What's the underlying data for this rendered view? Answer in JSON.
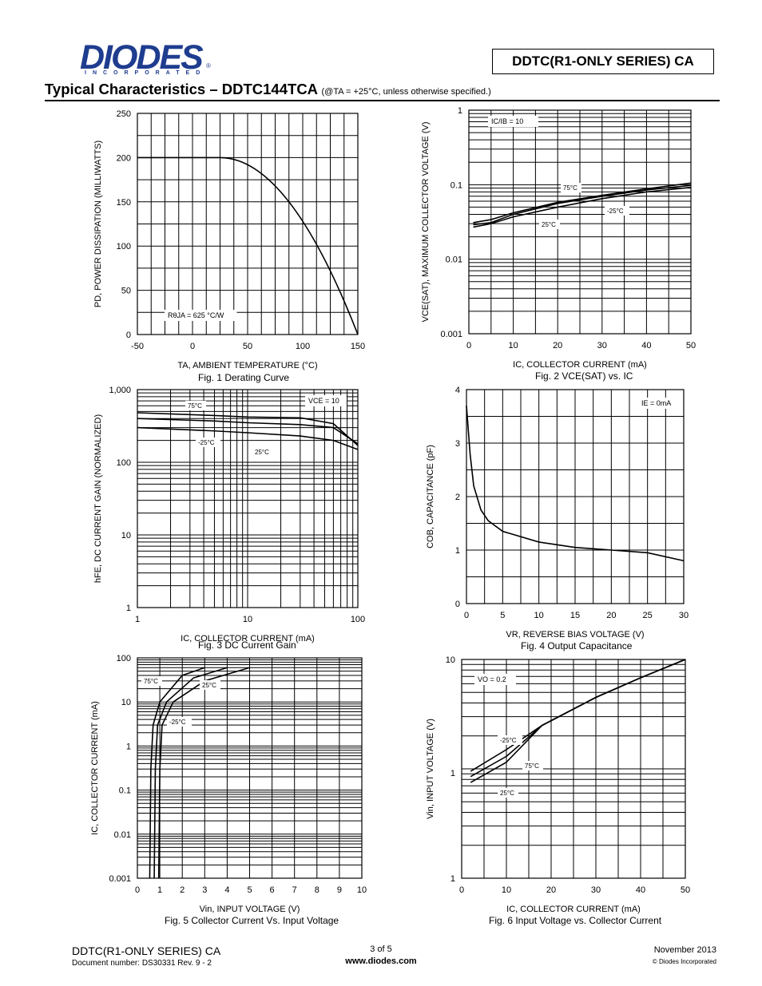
{
  "header": {
    "logo_text": "DIODES",
    "logo_subtext": "INCORPORATED",
    "logo_reg": "®",
    "part_series": "DDTC(R1-ONLY SERIES) CA"
  },
  "section": {
    "title": "Typical Characteristics – DDTC144TCA",
    "condition": "(@TA = +25°C, unless otherwise specified.)"
  },
  "figures": {
    "fig1": {
      "caption": "Fig. 1 Derating Curve",
      "ylabel": "PD, POWER DISSIPATION (MILLIWATTS)",
      "xlabel": "TA, AMBIENT TEMPERATURE (°C)",
      "note": "RθJA = 625 °C/W",
      "yticks": [
        "0",
        "50",
        "100",
        "150",
        "200",
        "250"
      ],
      "xticks": [
        "-50",
        "0",
        "50",
        "100",
        "150"
      ]
    },
    "fig2": {
      "caption": "Fig. 2 VCE(SAT) vs. IC",
      "ylabel": "VCE(SAT), MAXIMUM COLLECTOR VOLTAGE (V)",
      "xlabel": "IC, COLLECTOR CURRENT (mA)",
      "note": "IC/IB = 10",
      "series_labels": [
        "75°C",
        "-25°C",
        "25°C"
      ],
      "yticks": [
        "0.001",
        "0.01",
        "0.1",
        "1"
      ],
      "xticks": [
        "0",
        "10",
        "20",
        "30",
        "40",
        "50"
      ]
    },
    "fig3": {
      "caption": "Fig. 3 DC Current Gain",
      "ylabel": "hFE, DC CURRENT GAIN (NORMALIZED)",
      "xlabel": "IC, COLLECTOR CURRENT (mA)",
      "note": "VCE = 10",
      "series_labels": [
        "75°C",
        "-25°C",
        "25°C"
      ],
      "yticks": [
        "1",
        "10",
        "100",
        "1,000"
      ],
      "xticks": [
        "1",
        "10",
        "100"
      ]
    },
    "fig4": {
      "caption": "Fig. 4 Output Capacitance",
      "ylabel": "COB, CAPACITANCE (pF)",
      "xlabel": "VR, REVERSE BIAS VOLTAGE (V)",
      "note": "IE = 0mA",
      "yticks": [
        "0",
        "1",
        "2",
        "3",
        "4"
      ],
      "xticks": [
        "0",
        "5",
        "10",
        "15",
        "20",
        "25",
        "30"
      ]
    },
    "fig5": {
      "caption": "Fig. 5 Collector Current Vs. Input Voltage",
      "ylabel": "IC, COLLECTOR CURRENT (mA)",
      "xlabel": "Vin, INPUT VOLTAGE (V)",
      "series_labels": [
        "75°C",
        "25°C",
        "-25°C"
      ],
      "yticks": [
        "0.001",
        "0.01",
        "0.1",
        "1",
        "10",
        "100"
      ],
      "xticks": [
        "0",
        "1",
        "2",
        "3",
        "4",
        "5",
        "6",
        "7",
        "8",
        "9",
        "10"
      ]
    },
    "fig6": {
      "caption": "Fig. 6 Input Voltage vs. Collector Current",
      "ylabel": "Vin, INPUT VOLTAGE (V)",
      "xlabel": "IC, COLLECTOR CURRENT (mA)",
      "note": "VO = 0.2",
      "series_labels": [
        "-25°C",
        "75°C",
        "25°C"
      ],
      "yticks": [
        "1",
        "1",
        "10"
      ],
      "xticks": [
        "0",
        "10",
        "20",
        "30",
        "40",
        "50"
      ]
    }
  },
  "chart_data": [
    {
      "type": "line",
      "title": "Fig. 1 Derating Curve",
      "xlabel": "TA, AMBIENT TEMPERATURE (°C)",
      "ylabel": "PD, POWER DISSIPATION (MILLIWATTS)",
      "xlim": [
        -50,
        150
      ],
      "ylim": [
        0,
        250
      ],
      "series": [
        {
          "x": [
            -50,
            25,
            150
          ],
          "y": [
            200,
            200,
            0
          ]
        }
      ]
    },
    {
      "type": "line",
      "title": "Fig. 2 VCE(SAT) vs. IC",
      "xlabel": "IC, COLLECTOR CURRENT (mA)",
      "ylabel": "VCE(SAT), MAXIMUM COLLECTOR VOLTAGE (V)",
      "xlim": [
        0,
        50
      ],
      "ylim": [
        0.001,
        1
      ],
      "yscale": "log",
      "series": [
        {
          "name": "75°C",
          "x": [
            1,
            5,
            10,
            20,
            30,
            40,
            50
          ],
          "y": [
            0.031,
            0.034,
            0.042,
            0.058,
            0.072,
            0.088,
            0.105
          ]
        },
        {
          "name": "-25°C",
          "x": [
            1,
            5,
            10,
            20,
            30,
            40,
            50
          ],
          "y": [
            0.029,
            0.031,
            0.04,
            0.056,
            0.07,
            0.085,
            0.098
          ]
        },
        {
          "name": "25°C",
          "x": [
            1,
            5,
            10,
            20,
            30,
            40,
            50
          ],
          "y": [
            0.027,
            0.03,
            0.037,
            0.05,
            0.065,
            0.08,
            0.092
          ]
        }
      ]
    },
    {
      "type": "line",
      "title": "Fig. 3 DC Current Gain",
      "xlabel": "IC, COLLECTOR CURRENT (mA)",
      "ylabel": "hFE, DC CURRENT GAIN (NORMALIZED)",
      "xlim": [
        1,
        100
      ],
      "ylim": [
        1,
        1000
      ],
      "xscale": "log",
      "yscale": "log",
      "series": [
        {
          "name": "75°C",
          "x": [
            1,
            5,
            10,
            30,
            60,
            100
          ],
          "y": [
            480,
            440,
            420,
            410,
            340,
            170
          ]
        },
        {
          "name": "25°C",
          "x": [
            1,
            5,
            10,
            30,
            60,
            100
          ],
          "y": [
            400,
            370,
            350,
            330,
            300,
            180
          ]
        },
        {
          "name": "-25°C",
          "x": [
            1,
            5,
            10,
            30,
            60,
            100
          ],
          "y": [
            300,
            270,
            255,
            230,
            200,
            150
          ]
        }
      ]
    },
    {
      "type": "line",
      "title": "Fig. 4 Output Capacitance",
      "xlabel": "VR, REVERSE BIAS VOLTAGE (V)",
      "ylabel": "COB, CAPACITANCE (pF)",
      "xlim": [
        0,
        30
      ],
      "ylim": [
        0,
        4
      ],
      "series": [
        {
          "x": [
            0,
            0.5,
            1,
            2,
            3,
            5,
            10,
            15,
            20,
            25,
            30
          ],
          "y": [
            3.7,
            2.8,
            2.2,
            1.75,
            1.55,
            1.35,
            1.15,
            1.05,
            1.0,
            0.95,
            0.8
          ]
        }
      ]
    },
    {
      "type": "line",
      "title": "Fig. 5 Collector Current Vs. Input Voltage",
      "xlabel": "Vin, INPUT VOLTAGE (V)",
      "ylabel": "IC, COLLECTOR CURRENT (mA)",
      "xlim": [
        0,
        10
      ],
      "ylim": [
        0.001,
        100
      ],
      "yscale": "log",
      "series": [
        {
          "name": "75°C",
          "x": [
            0.55,
            0.6,
            0.7,
            1,
            2,
            3
          ],
          "y": [
            0.001,
            0.3,
            3,
            10,
            40,
            60
          ]
        },
        {
          "name": "25°C",
          "x": [
            0.75,
            0.8,
            0.9,
            1.3,
            2.5,
            4
          ],
          "y": [
            0.001,
            0.3,
            3,
            10,
            35,
            60
          ]
        },
        {
          "name": "-25°C",
          "x": [
            0.95,
            1.0,
            1.1,
            1.6,
            3,
            5
          ],
          "y": [
            0.001,
            0.3,
            3,
            10,
            30,
            60
          ]
        }
      ]
    },
    {
      "type": "line",
      "title": "Fig. 6 Input Voltage vs. Collector Current",
      "xlabel": "IC, COLLECTOR CURRENT (mA)",
      "ylabel": "Vin, INPUT VOLTAGE (V)",
      "xlim": [
        0,
        50
      ],
      "ylim": [
        0.1,
        10
      ],
      "yscale": "log",
      "series": [
        {
          "name": "-25°C",
          "x": [
            2,
            10,
            18,
            30,
            40,
            50
          ],
          "y": [
            0.95,
            1.5,
            2.5,
            4.5,
            6.8,
            10
          ]
        },
        {
          "name": "75°C",
          "x": [
            2,
            10,
            18,
            30,
            40,
            50
          ],
          "y": [
            0.85,
            1.3,
            2.5,
            4.5,
            6.8,
            10
          ]
        },
        {
          "name": "25°C",
          "x": [
            2,
            10,
            18,
            30,
            40,
            50
          ],
          "y": [
            0.75,
            1.15,
            2.5,
            4.5,
            6.8,
            10
          ]
        }
      ]
    }
  ],
  "footer": {
    "series": "DDTC(R1-ONLY SERIES) CA",
    "document": "Document number: DS30331 Rev. 9 - 2",
    "page": "3 of 5",
    "url": "www.diodes.com",
    "date": "November 2013",
    "copyright": "© Diodes Incorporated"
  }
}
